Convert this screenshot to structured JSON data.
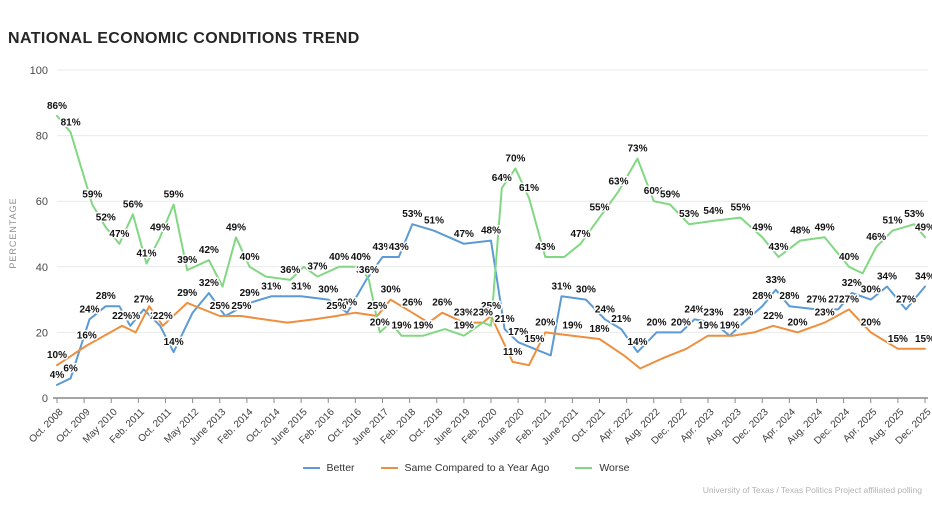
{
  "title": "NATIONAL ECONOMIC CONDITIONS TREND",
  "footer": "University of Texas / Texas Politics Project affiliated polling",
  "colors": {
    "better": "#5b9bd5",
    "same": "#ed8f3f",
    "worse": "#82d882",
    "grid": "#e9e9e9",
    "axis": "#a6a6a6",
    "tick": "#8c8c8c"
  },
  "legend": {
    "items": [
      {
        "key": "better",
        "label": "Better"
      },
      {
        "key": "same",
        "label": "Same Compared to a Year Ago"
      },
      {
        "key": "worse",
        "label": "Worse"
      }
    ]
  },
  "chart_data": {
    "type": "line",
    "title": "NATIONAL ECONOMIC CONDITIONS TREND",
    "xlabel": "",
    "ylabel": "PERCENTAGE",
    "ylim": [
      0,
      100
    ],
    "yticks": [
      0,
      20,
      40,
      60,
      80,
      100
    ],
    "grid": true,
    "legend_position": "bottom",
    "x_tick_labels": [
      "Oct. 2008",
      "Oct. 2009",
      "May 2010",
      "Feb. 2011",
      "Oct. 2011",
      "May 2012",
      "June 2013",
      "Feb. 2014",
      "Oct. 2014",
      "June 2015",
      "Feb. 2016",
      "Oct. 2016",
      "June 2017",
      "Feb. 2018",
      "Oct. 2018",
      "June 2019",
      "Feb. 2020",
      "June 2020",
      "Feb. 2021",
      "June 2021",
      "Oct. 2021",
      "Apr. 2022",
      "Aug. 2022",
      "Dec. 2022",
      "Apr. 2023",
      "Aug. 2023",
      "Dec. 2023",
      "Apr. 2024",
      "Aug. 2024",
      "Dec. 2024",
      "Apr. 2025",
      "Aug. 2025",
      "Dec. 2025"
    ],
    "points_format": "[x position in tick-index units, percent value, 1 = percent label shown on chart]",
    "series": [
      {
        "name": "Better",
        "color_key": "better",
        "points": [
          [
            0,
            4,
            1
          ],
          [
            0.5,
            6,
            1
          ],
          [
            1.2,
            24,
            1
          ],
          [
            1.8,
            28,
            1
          ],
          [
            2.3,
            28,
            0
          ],
          [
            2.7,
            22,
            1
          ],
          [
            3.2,
            27,
            1
          ],
          [
            3.8,
            22,
            1
          ],
          [
            4.3,
            14,
            1
          ],
          [
            5,
            26,
            0
          ],
          [
            5.6,
            32,
            1
          ],
          [
            6.2,
            25,
            0
          ],
          [
            7.1,
            29,
            1
          ],
          [
            7.9,
            31,
            1
          ],
          [
            9,
            31,
            1
          ],
          [
            10,
            30,
            1
          ],
          [
            10.7,
            26,
            1
          ],
          [
            11.4,
            36,
            1
          ],
          [
            12,
            43,
            1
          ],
          [
            12.6,
            43,
            1
          ],
          [
            13.1,
            53,
            1
          ],
          [
            13.9,
            51,
            1
          ],
          [
            15,
            47,
            1
          ],
          [
            16,
            48,
            1
          ],
          [
            16.5,
            21,
            1
          ],
          [
            17,
            17,
            1
          ],
          [
            17.6,
            15,
            1
          ],
          [
            18.2,
            13,
            0
          ],
          [
            18.6,
            31,
            1
          ],
          [
            19.5,
            30,
            1
          ],
          [
            20.2,
            24,
            1
          ],
          [
            20.8,
            21,
            1
          ],
          [
            21.4,
            14,
            1
          ],
          [
            22.1,
            20,
            1
          ],
          [
            23,
            20,
            1
          ],
          [
            23.5,
            24,
            1
          ],
          [
            24.2,
            23,
            1
          ],
          [
            24.8,
            19,
            1
          ],
          [
            25.3,
            23,
            1
          ],
          [
            26,
            28,
            1
          ],
          [
            26.5,
            33,
            1
          ],
          [
            27,
            28,
            1
          ],
          [
            28,
            27,
            1
          ],
          [
            28.8,
            27,
            1
          ],
          [
            29.3,
            32,
            1
          ],
          [
            30,
            30,
            1
          ],
          [
            30.6,
            34,
            1
          ],
          [
            31.3,
            27,
            1
          ],
          [
            32,
            34,
            1
          ]
        ]
      },
      {
        "name": "Same Compared to a Year Ago",
        "color_key": "same",
        "points": [
          [
            0,
            10,
            1
          ],
          [
            1.1,
            16,
            1
          ],
          [
            2.4,
            22,
            1
          ],
          [
            2.9,
            20,
            0
          ],
          [
            3.4,
            28,
            0
          ],
          [
            3.9,
            22,
            1
          ],
          [
            4.8,
            29,
            1
          ],
          [
            6,
            25,
            1
          ],
          [
            6.8,
            25,
            1
          ],
          [
            7.6,
            24,
            0
          ],
          [
            8.5,
            23,
            0
          ],
          [
            9.5,
            24,
            0
          ],
          [
            10.3,
            25,
            1
          ],
          [
            11,
            26,
            0
          ],
          [
            11.8,
            25,
            1
          ],
          [
            12.3,
            30,
            1
          ],
          [
            13.1,
            26,
            1
          ],
          [
            13.7,
            23,
            0
          ],
          [
            14.2,
            26,
            1
          ],
          [
            15,
            23,
            1
          ],
          [
            15.7,
            23,
            0
          ],
          [
            16,
            25,
            1
          ],
          [
            16.8,
            11,
            1
          ],
          [
            17.4,
            10,
            0
          ],
          [
            18,
            20,
            1
          ],
          [
            19,
            19,
            1
          ],
          [
            20,
            18,
            1
          ],
          [
            20.9,
            13,
            0
          ],
          [
            21.5,
            9,
            0
          ],
          [
            22.3,
            12,
            0
          ],
          [
            23.2,
            15,
            0
          ],
          [
            24,
            19,
            1
          ],
          [
            24.9,
            19,
            0
          ],
          [
            25.7,
            20,
            0
          ],
          [
            26.4,
            22,
            1
          ],
          [
            27.3,
            20,
            1
          ],
          [
            28.3,
            23,
            1
          ],
          [
            29.2,
            27,
            1
          ],
          [
            30,
            20,
            1
          ],
          [
            31,
            15,
            1
          ],
          [
            32,
            15,
            1
          ]
        ]
      },
      {
        "name": "Worse",
        "color_key": "worse",
        "points": [
          [
            0,
            86,
            1
          ],
          [
            0.5,
            81,
            1
          ],
          [
            1.3,
            59,
            1
          ],
          [
            1.8,
            52,
            1
          ],
          [
            2.3,
            47,
            1
          ],
          [
            2.8,
            56,
            1
          ],
          [
            3.3,
            41,
            1
          ],
          [
            3.8,
            49,
            1
          ],
          [
            4.3,
            59,
            1
          ],
          [
            4.8,
            39,
            1
          ],
          [
            5.6,
            42,
            1
          ],
          [
            6.1,
            34,
            0
          ],
          [
            6.6,
            49,
            1
          ],
          [
            7.1,
            40,
            1
          ],
          [
            7.7,
            37,
            0
          ],
          [
            8.6,
            36,
            1
          ],
          [
            9.1,
            40,
            0
          ],
          [
            9.6,
            37,
            1
          ],
          [
            10.4,
            40,
            1
          ],
          [
            11.2,
            40,
            1
          ],
          [
            11.5,
            36,
            1
          ],
          [
            11.9,
            20,
            1
          ],
          [
            12.3,
            23,
            0
          ],
          [
            12.7,
            19,
            1
          ],
          [
            13.5,
            19,
            1
          ],
          [
            14.3,
            21,
            0
          ],
          [
            15,
            19,
            1
          ],
          [
            15.7,
            23,
            1
          ],
          [
            16,
            22,
            0
          ],
          [
            16.4,
            64,
            1
          ],
          [
            16.9,
            70,
            1
          ],
          [
            17.4,
            61,
            1
          ],
          [
            18,
            43,
            1
          ],
          [
            18.7,
            43,
            0
          ],
          [
            19.3,
            47,
            1
          ],
          [
            20,
            55,
            1
          ],
          [
            20.7,
            63,
            1
          ],
          [
            21.4,
            73,
            1
          ],
          [
            22,
            60,
            1
          ],
          [
            22.6,
            59,
            1
          ],
          [
            23.3,
            53,
            1
          ],
          [
            24.2,
            54,
            1
          ],
          [
            25.2,
            55,
            1
          ],
          [
            26,
            49,
            1
          ],
          [
            26.6,
            43,
            1
          ],
          [
            27.4,
            48,
            1
          ],
          [
            28.3,
            49,
            1
          ],
          [
            29.2,
            40,
            1
          ],
          [
            29.7,
            38,
            0
          ],
          [
            30.2,
            46,
            1
          ],
          [
            30.8,
            51,
            1
          ],
          [
            31.6,
            53,
            1
          ],
          [
            32,
            49,
            1
          ]
        ]
      }
    ]
  }
}
